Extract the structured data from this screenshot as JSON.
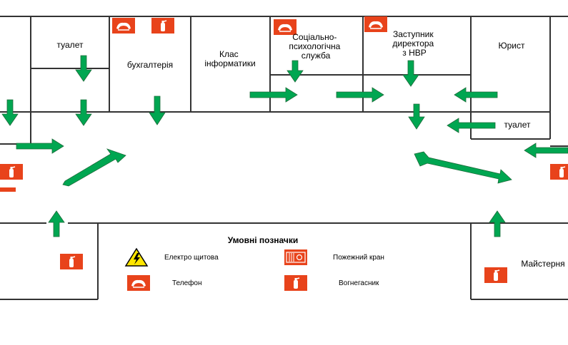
{
  "rooms": {
    "toilet_top": "туалет",
    "accounting": "бухгалтерія",
    "computer_class": "Клас\nінформатики",
    "social_service": "Соціально-\nпсихологічна\nслужба",
    "deputy_director": "Заступник\nдиректора\nз НВР",
    "lawyer": "Юрист",
    "toilet_right": "туалет",
    "workshop": "Майстерня"
  },
  "legend": {
    "title": "Умовні позначки",
    "electrical_panel": "Електро щитова",
    "fire_hydrant": "Пожежний кран",
    "telephone": "Телефон",
    "extinguisher": "Вогнегасник"
  },
  "colors": {
    "arrow": "#00a651",
    "arrow_stroke": "#1c6b3a",
    "sign_red": "#e8431b",
    "wall": "#333333",
    "warning_yellow": "#ffe600"
  },
  "icons": [
    "telephone-icon",
    "extinguisher-icon",
    "fire-hydrant-icon",
    "electrical-warning-icon",
    "evacuation-arrow"
  ]
}
